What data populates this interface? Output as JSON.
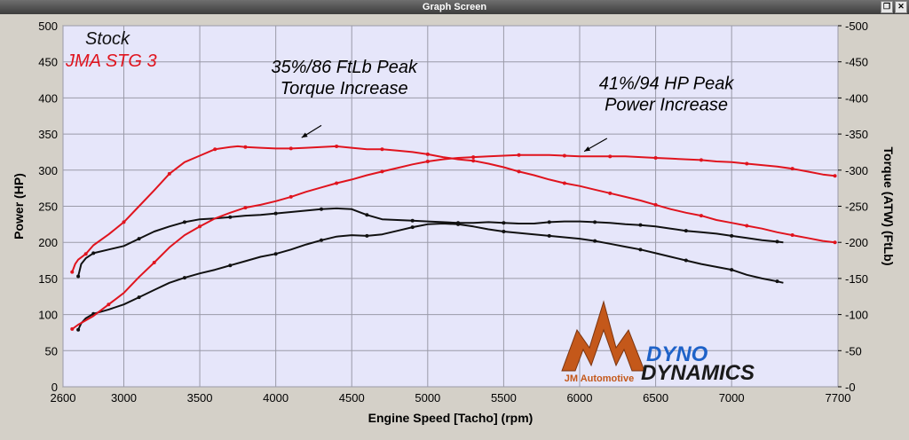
{
  "window": {
    "title": "Graph Screen",
    "restore_icon": "restore-window-icon",
    "close_icon": "close-window-icon"
  },
  "chart_data": {
    "type": "line",
    "title": "",
    "xlabel": "Engine Speed [Tacho] (rpm)",
    "ylabel_left": "Power (HP)",
    "ylabel_right": "Torque (ATW) (FtLb)",
    "xlim": [
      2600,
      7700
    ],
    "ylim_left": [
      0,
      500
    ],
    "ylim_right": [
      0,
      500
    ],
    "x_ticks": [
      2600,
      3000,
      3500,
      4000,
      4500,
      5000,
      5500,
      6000,
      6500,
      7000,
      7700
    ],
    "y_ticks": [
      0,
      50,
      100,
      150,
      200,
      250,
      300,
      350,
      400,
      450,
      500
    ],
    "grid": true,
    "background_color": "#e6e6fa",
    "legend": [
      {
        "label": "Stock",
        "color": "#111111"
      },
      {
        "label": "JMA STG 3",
        "color": "#e0141e"
      }
    ],
    "annotations": [
      {
        "lines": [
          "35%/86 FtLb Peak",
          "Torque Increase"
        ],
        "text_x": 4450,
        "text_y": 435,
        "arrow_from": [
          4300,
          362
        ],
        "arrow_to": [
          4170,
          345
        ]
      },
      {
        "lines": [
          "41%/94 HP Peak",
          "Power Increase"
        ],
        "text_x": 6570,
        "text_y": 412,
        "arrow_from": [
          6180,
          344
        ],
        "arrow_to": [
          6030,
          326
        ]
      }
    ],
    "series": [
      {
        "name": "Stock",
        "kind": "Torque",
        "color": "#111111",
        "x": [
          2700,
          2720,
          2750,
          2800,
          2900,
          3000,
          3100,
          3200,
          3300,
          3400,
          3500,
          3600,
          3700,
          3800,
          3900,
          4000,
          4100,
          4200,
          4300,
          4400,
          4500,
          4600,
          4700,
          4800,
          4900,
          5000,
          5100,
          5200,
          5300,
          5400,
          5500,
          5600,
          5700,
          5800,
          5900,
          6000,
          6100,
          6200,
          6300,
          6400,
          6500,
          6600,
          6700,
          6800,
          6900,
          7000,
          7100,
          7200,
          7300,
          7340
        ],
        "y": [
          153,
          170,
          178,
          185,
          190,
          195,
          205,
          215,
          222,
          228,
          232,
          233,
          235,
          237,
          238,
          240,
          242,
          244,
          246,
          247,
          246,
          238,
          232,
          231,
          230,
          229,
          228,
          227,
          227,
          228,
          227,
          226,
          226,
          228,
          229,
          229,
          228,
          227,
          225,
          224,
          222,
          219,
          216,
          214,
          212,
          209,
          206,
          203,
          201,
          200
        ]
      },
      {
        "name": "Stock",
        "kind": "Power",
        "color": "#111111",
        "x": [
          2700,
          2720,
          2750,
          2800,
          2900,
          3000,
          3100,
          3200,
          3300,
          3400,
          3500,
          3600,
          3700,
          3800,
          3900,
          4000,
          4100,
          4200,
          4300,
          4400,
          4500,
          4600,
          4700,
          4800,
          4900,
          5000,
          5100,
          5200,
          5300,
          5400,
          5500,
          5600,
          5700,
          5800,
          5900,
          6000,
          6100,
          6200,
          6300,
          6400,
          6500,
          6600,
          6700,
          6800,
          6900,
          7000,
          7100,
          7200,
          7300,
          7340
        ],
        "y": [
          79,
          88,
          95,
          101,
          107,
          114,
          124,
          134,
          144,
          151,
          157,
          162,
          168,
          174,
          180,
          184,
          190,
          197,
          203,
          208,
          210,
          209,
          211,
          216,
          221,
          225,
          226,
          225,
          222,
          218,
          215,
          213,
          211,
          209,
          207,
          205,
          202,
          198,
          194,
          190,
          185,
          180,
          175,
          170,
          166,
          162,
          155,
          150,
          146,
          144
        ]
      },
      {
        "name": "JMA STG 3",
        "kind": "Torque",
        "color": "#e0141e",
        "x": [
          2660,
          2680,
          2700,
          2750,
          2800,
          2900,
          3000,
          3100,
          3200,
          3300,
          3400,
          3500,
          3600,
          3700,
          3750,
          3800,
          3900,
          4000,
          4100,
          4200,
          4300,
          4400,
          4500,
          4600,
          4700,
          4800,
          4900,
          5000,
          5100,
          5200,
          5300,
          5400,
          5500,
          5600,
          5700,
          5800,
          5900,
          6000,
          6100,
          6200,
          6300,
          6400,
          6500,
          6600,
          6700,
          6800,
          6900,
          7000,
          7100,
          7200,
          7300,
          7400,
          7500,
          7600,
          7680
        ],
        "y": [
          159,
          170,
          176,
          184,
          196,
          211,
          228,
          250,
          272,
          295,
          311,
          320,
          329,
          332,
          333,
          332,
          331,
          330,
          330,
          331,
          332,
          333,
          331,
          329,
          329,
          327,
          325,
          322,
          318,
          315,
          313,
          309,
          304,
          298,
          293,
          287,
          282,
          278,
          273,
          268,
          263,
          258,
          252,
          246,
          241,
          237,
          231,
          227,
          223,
          219,
          214,
          210,
          206,
          202,
          200
        ]
      },
      {
        "name": "JMA STG 3",
        "kind": "Power",
        "color": "#e0141e",
        "x": [
          2660,
          2700,
          2800,
          2900,
          3000,
          3100,
          3200,
          3300,
          3400,
          3500,
          3600,
          3700,
          3800,
          3900,
          4000,
          4100,
          4200,
          4300,
          4400,
          4500,
          4600,
          4700,
          4800,
          4900,
          5000,
          5100,
          5200,
          5300,
          5400,
          5500,
          5600,
          5700,
          5800,
          5900,
          6000,
          6100,
          6200,
          6300,
          6400,
          6500,
          6600,
          6700,
          6800,
          6900,
          7000,
          7100,
          7200,
          7300,
          7400,
          7500,
          7600,
          7680
        ],
        "y": [
          80,
          86,
          98,
          114,
          130,
          152,
          172,
          193,
          210,
          222,
          233,
          241,
          248,
          252,
          257,
          263,
          270,
          276,
          282,
          287,
          293,
          298,
          303,
          308,
          312,
          315,
          317,
          318,
          319,
          320,
          321,
          321,
          321,
          320,
          319,
          319,
          319,
          319,
          318,
          317,
          316,
          315,
          314,
          312,
          311,
          309,
          307,
          305,
          302,
          298,
          294,
          292
        ]
      }
    ]
  },
  "logos": {
    "jm_automotive": "JM Automotive",
    "dyno_top": "DYNO",
    "dyno_bottom": "DYNAMICS"
  }
}
